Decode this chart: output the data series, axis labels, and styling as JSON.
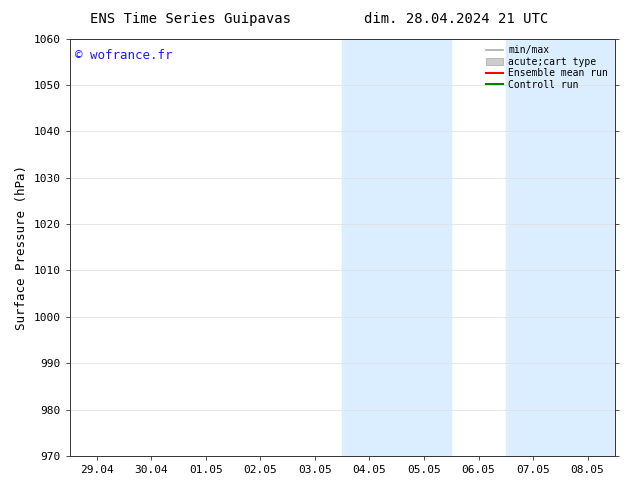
{
  "title_left": "ENS Time Series Guipavas",
  "title_right": "dim. 28.04.2024 21 UTC",
  "ylabel": "Surface Pressure (hPa)",
  "watermark": "© wofrance.fr",
  "watermark_color": "#1a1aff",
  "ylim": [
    970,
    1060
  ],
  "yticks": [
    970,
    980,
    990,
    1000,
    1010,
    1020,
    1030,
    1040,
    1050,
    1060
  ],
  "xtick_labels": [
    "29.04",
    "30.04",
    "01.05",
    "02.05",
    "03.05",
    "04.05",
    "05.05",
    "06.05",
    "07.05",
    "08.05"
  ],
  "xtick_positions": [
    0,
    1,
    2,
    3,
    4,
    5,
    6,
    7,
    8,
    9
  ],
  "xlim": [
    -0.5,
    9.5
  ],
  "shade_regions": [
    {
      "xmin": 4.5,
      "xmax": 6.5
    },
    {
      "xmin": 7.5,
      "xmax": 9.5
    }
  ],
  "shade_color": "#daeeff",
  "background_color": "#ffffff",
  "legend_items": [
    {
      "label": "min/max",
      "color": "#aaaaaa",
      "lw": 1.2,
      "patch": false
    },
    {
      "label": "acute;cart type",
      "color": "#cccccc",
      "lw": 6,
      "patch": true
    },
    {
      "label": "Ensemble mean run",
      "color": "#ff0000",
      "lw": 1.5,
      "patch": false
    },
    {
      "label": "Controll run",
      "color": "#008000",
      "lw": 1.5,
      "patch": false
    }
  ],
  "tick_color": "#333333",
  "spine_color": "#333333",
  "font_size": 8,
  "title_font_size": 10,
  "ylabel_fontsize": 9
}
